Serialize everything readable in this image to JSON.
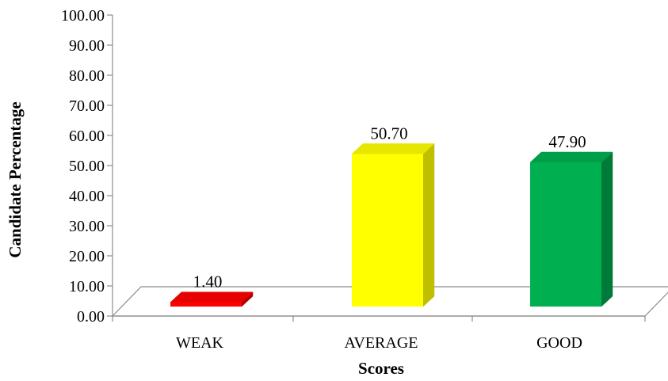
{
  "chart_data": {
    "type": "bar",
    "title": "",
    "xlabel": "Scores",
    "ylabel": "Candidate Percentage",
    "categories": [
      "WEAK",
      "AVERAGE",
      "GOOD"
    ],
    "values": [
      1.4,
      50.7,
      47.9
    ],
    "value_labels": [
      "1.40",
      "50.70",
      "47.90"
    ],
    "y_ticks": [
      "0.00",
      "10.00",
      "20.00",
      "30.00",
      "40.00",
      "50.00",
      "60.00",
      "70.00",
      "80.00",
      "90.00",
      "100.00"
    ],
    "ylim": [
      0,
      100
    ],
    "grid": false,
    "legend": "none",
    "style": "3d",
    "colors": [
      {
        "front": "#ff0000",
        "side": "#b30000",
        "top": "#e60000"
      },
      {
        "front": "#ffff00",
        "side": "#bfbf00",
        "top": "#e6e600"
      },
      {
        "front": "#00b050",
        "side": "#007a38",
        "top": "#009e48"
      }
    ]
  }
}
